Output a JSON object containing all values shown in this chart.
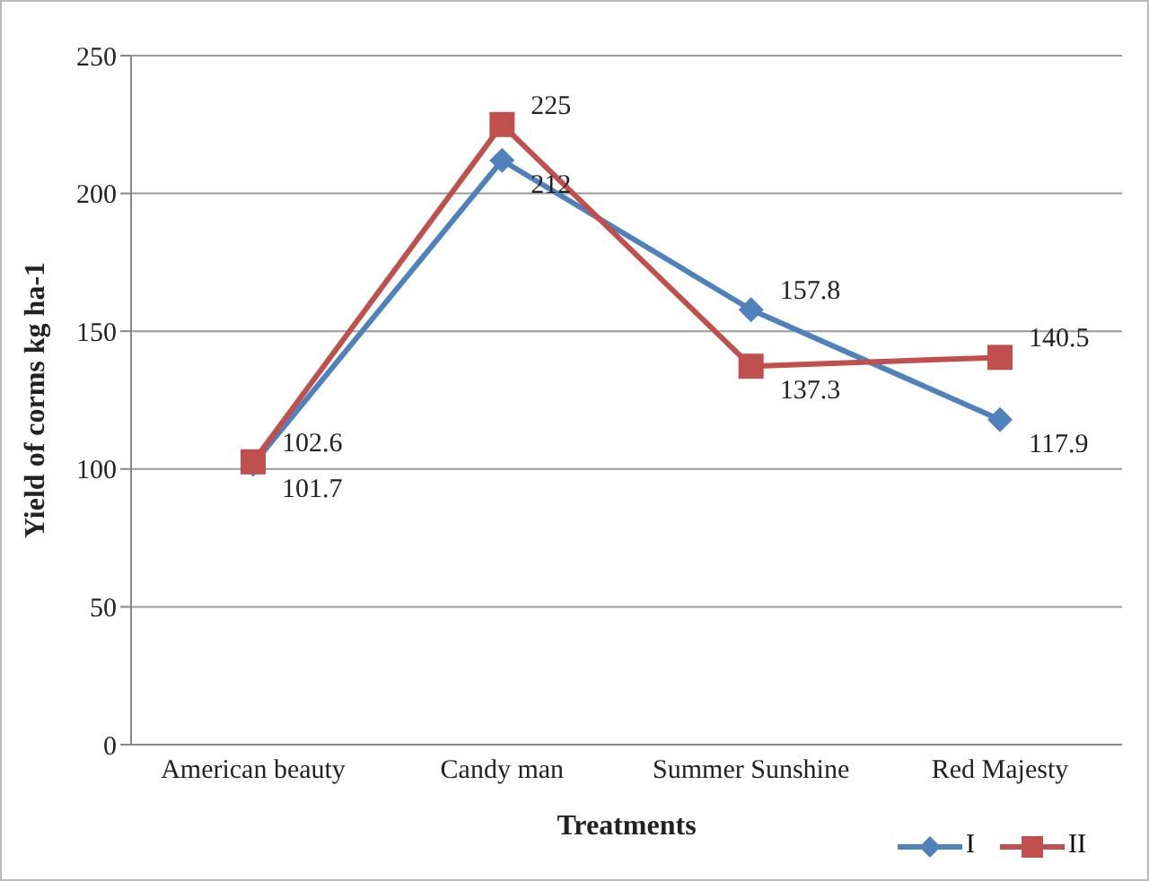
{
  "chart_data": {
    "type": "line",
    "xlabel": "Treatments",
    "ylabel": "Yield of corms kg ha-1",
    "categories": [
      "American beauty",
      "Candy man",
      "Summer Sunshine",
      "Red Majesty"
    ],
    "series": [
      {
        "name": "I",
        "color": "#4f81bd",
        "marker": "diamond",
        "values": [
          101.7,
          212,
          157.8,
          117.9
        ]
      },
      {
        "name": "II",
        "color": "#c0504d",
        "marker": "square",
        "values": [
          102.6,
          225,
          137.3,
          140.5
        ]
      }
    ],
    "ylim": [
      0,
      250
    ],
    "yticks": [
      0,
      50,
      100,
      150,
      200,
      250
    ],
    "grid": "y",
    "legend": "bottom right",
    "data_labels": true
  }
}
